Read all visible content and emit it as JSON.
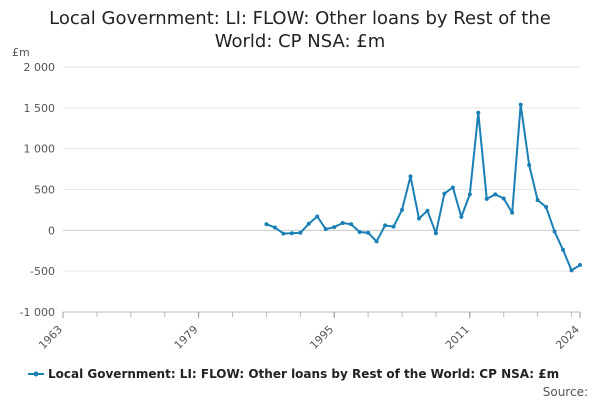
{
  "chart_data": {
    "type": "line",
    "title_line1": "Local Government: LI: FLOW: Other loans by Rest of the",
    "title_line2": "World: CP NSA: £m",
    "ylabel": "£m",
    "xlabel": "",
    "ylim": [
      -1000,
      2000
    ],
    "xlim": [
      1963,
      2024
    ],
    "y_ticks": [
      -1000,
      -500,
      0,
      500,
      1000,
      1500,
      2000
    ],
    "y_tick_labels": [
      "-1 000",
      "-500",
      "0",
      "500",
      "1 000",
      "1 500",
      "2 000"
    ],
    "x_ticks": [
      1963,
      1979,
      1995,
      2011,
      2024
    ],
    "x_tick_labels": [
      "1963",
      "1979",
      "1995",
      "2011",
      "2024"
    ],
    "grid": true,
    "legend_position": "bottom",
    "series": [
      {
        "name": "Local Government: LI: FLOW: Other loans by Rest of the World: CP NSA: £m",
        "color": "#1a7fb5",
        "x": [
          1987,
          1988,
          1989,
          1990,
          1991,
          1992,
          1993,
          1994,
          1995,
          1996,
          1997,
          1998,
          1999,
          2000,
          2001,
          2002,
          2003,
          2004,
          2005,
          2006,
          2007,
          2008,
          2009,
          2010,
          2011,
          2012,
          2013,
          2014,
          2015,
          2016,
          2017,
          2018,
          2019,
          2020,
          2021,
          2022,
          2023,
          2024
        ],
        "values": [
          75,
          35,
          -40,
          -35,
          -30,
          80,
          170,
          15,
          40,
          90,
          75,
          -20,
          -30,
          -135,
          60,
          45,
          250,
          660,
          145,
          240,
          -35,
          450,
          525,
          165,
          440,
          1440,
          385,
          440,
          390,
          215,
          1540,
          800,
          370,
          285,
          -15,
          -240,
          -490,
          -425
        ]
      }
    ]
  },
  "legend": {
    "label": "Local Government: LI: FLOW: Other loans by Rest of the World: CP NSA: £m"
  },
  "source_label": "Source:"
}
